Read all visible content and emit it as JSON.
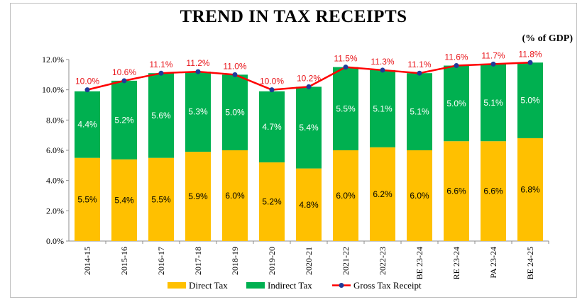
{
  "chart_data": {
    "type": "bar",
    "title": "TREND IN TAX RECEIPTS",
    "unit_label": "(% of GDP)",
    "categories": [
      "2014-15",
      "2015-16",
      "2016-17",
      "2017-18",
      "2018-19",
      "2019-20",
      "2020-21",
      "2021-22",
      "2022-23",
      "BE 23-24",
      "RE 23-24",
      "PA 23-24",
      "BE 24-25"
    ],
    "series": [
      {
        "name": "Direct Tax",
        "values": [
          5.5,
          5.4,
          5.5,
          5.9,
          6.0,
          5.2,
          4.8,
          6.0,
          6.2,
          6.0,
          6.6,
          6.6,
          6.8
        ],
        "color": "#ffc000",
        "kind": "stacked-bar"
      },
      {
        "name": "Indirect Tax",
        "values": [
          4.4,
          5.2,
          5.6,
          5.3,
          5.0,
          4.7,
          5.4,
          5.5,
          5.1,
          5.1,
          5.0,
          5.1,
          5.0
        ],
        "color": "#00b050",
        "kind": "stacked-bar"
      },
      {
        "name": "Gross Tax Receipt",
        "values": [
          10.0,
          10.6,
          11.1,
          11.2,
          11.0,
          10.0,
          10.2,
          11.5,
          11.3,
          11.1,
          11.6,
          11.7,
          11.8
        ],
        "color": "#ff0000",
        "marker_color": "#1f3b99",
        "kind": "line"
      }
    ],
    "ylim": [
      0,
      12
    ],
    "yticks": [
      "0.0%",
      "2.0%",
      "4.0%",
      "6.0%",
      "8.0%",
      "10.0%",
      "12.0%"
    ],
    "xlabel": "",
    "ylabel": "",
    "grid": false,
    "legend_position": "bottom",
    "value_format": "%"
  }
}
